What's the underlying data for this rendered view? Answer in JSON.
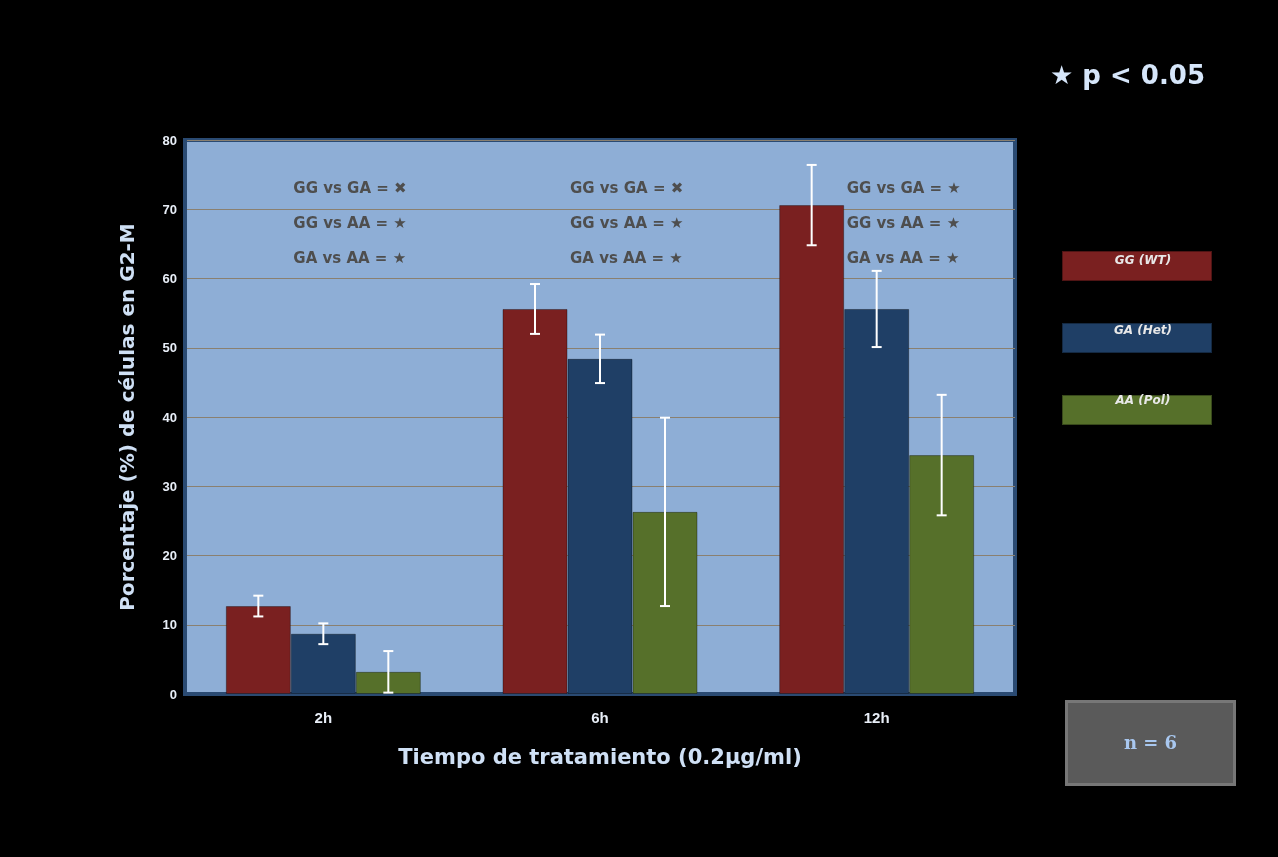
{
  "chart_data": {
    "type": "bar",
    "xlabel": "Tiempo de tratamiento (0.2µg/ml)",
    "ylabel": "Porcentaje (%) de células en G2-M",
    "categories": [
      "2h",
      "6h",
      "12h"
    ],
    "series": [
      {
        "name": "GG (WT)",
        "color": "#7a2020",
        "values": [
          12.7,
          55.6,
          70.6
        ],
        "errors": [
          1.5,
          3.6,
          5.8
        ]
      },
      {
        "name": "GA (Het)",
        "color": "#1f3f66",
        "values": [
          8.7,
          48.4,
          55.6
        ],
        "errors": [
          1.5,
          3.5,
          5.5
        ]
      },
      {
        "name": "AA (Pol)",
        "color": "#56702a",
        "values": [
          3.2,
          26.3,
          34.5
        ],
        "errors": [
          3,
          13.6,
          8.7
        ]
      }
    ],
    "ylim": [
      0,
      80
    ],
    "yticks": [
      0,
      10,
      20,
      30,
      40,
      50,
      60,
      70,
      80
    ],
    "grid": "y",
    "legend": "right",
    "annotations": [
      "GG vs GA = ✖",
      "GG vs AA = ★",
      "GA vs AA = ★",
      "GG vs GA = ✖",
      "GG vs AA = ★",
      "GA vs AA = ★",
      "GG vs GA = ★",
      "GG vs AA = ★",
      "GA vs AA = ★",
      "★ p < 0.05",
      "n = 6"
    ]
  }
}
